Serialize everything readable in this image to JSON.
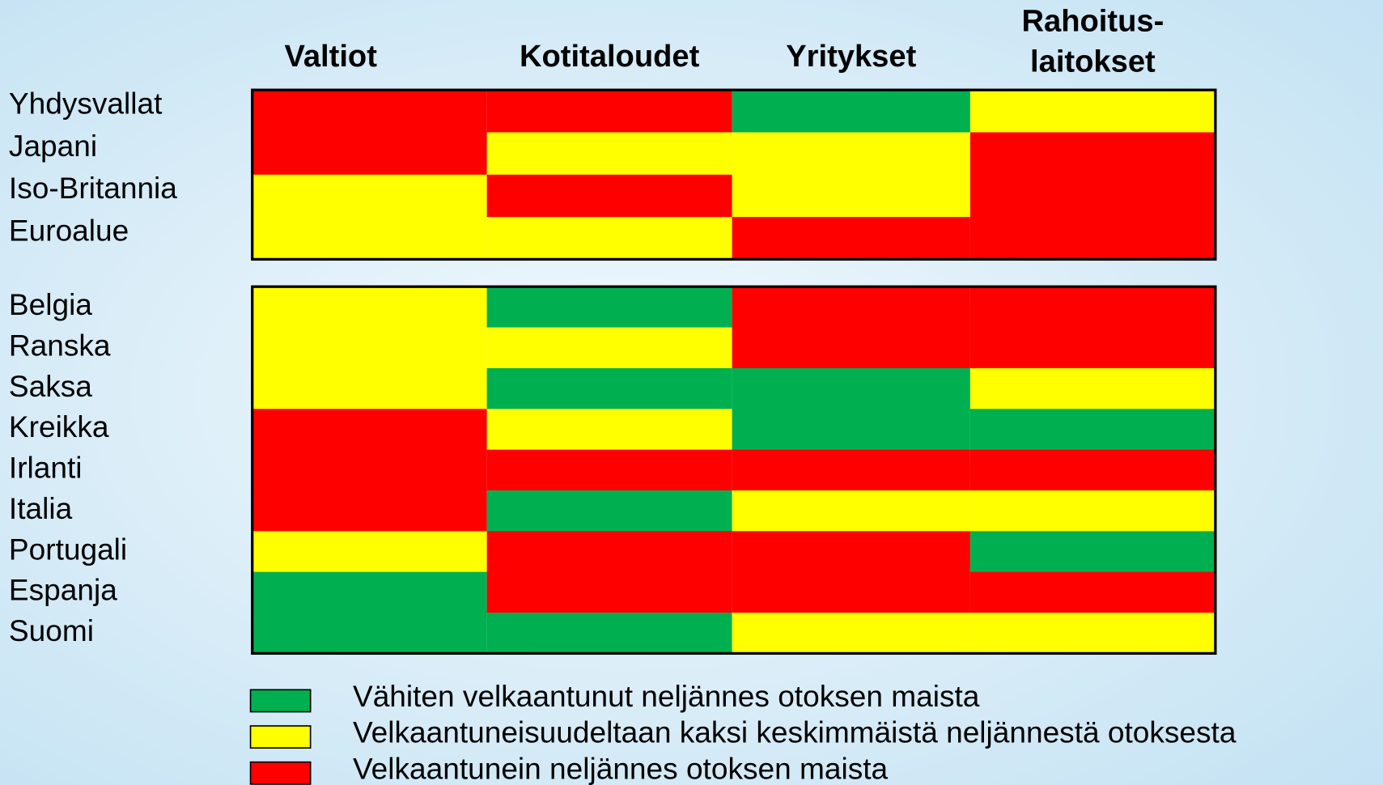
{
  "columns": [
    {
      "lines": [
        "Valtiot"
      ]
    },
    {
      "lines": [
        "Kotitaloudet"
      ]
    },
    {
      "lines": [
        "Yritykset"
      ]
    },
    {
      "lines": [
        "Rahoitus-",
        "laitokset"
      ]
    }
  ],
  "legend": [
    {
      "label": "Vähiten velkaantunut neljännes otoksen maista",
      "color": "#00b050"
    },
    {
      "label": "Velkaantuneisuudeltaan kaksi keskimmäistä neljännestä otoksesta",
      "color": "#ffff00"
    },
    {
      "label": "Velkaantunein neljännes otoksen maista",
      "color": "#ff0000"
    }
  ],
  "groups": [
    {
      "rows": [
        {
          "label": "Yhdysvallat",
          "cells": [
            2,
            2,
            0,
            1
          ]
        },
        {
          "label": "Japani",
          "cells": [
            2,
            1,
            1,
            2
          ]
        },
        {
          "label": "Iso-Britannia",
          "cells": [
            1,
            2,
            1,
            2
          ]
        },
        {
          "label": "Euroalue",
          "cells": [
            1,
            1,
            2,
            2
          ]
        }
      ]
    },
    {
      "rows": [
        {
          "label": "Belgia",
          "cells": [
            1,
            0,
            2,
            2
          ]
        },
        {
          "label": "Ranska",
          "cells": [
            1,
            1,
            2,
            2
          ]
        },
        {
          "label": "Saksa",
          "cells": [
            1,
            0,
            0,
            1
          ]
        },
        {
          "label": "Kreikka",
          "cells": [
            2,
            1,
            0,
            0
          ]
        },
        {
          "label": "Irlanti",
          "cells": [
            2,
            2,
            2,
            2
          ]
        },
        {
          "label": "Italia",
          "cells": [
            2,
            0,
            1,
            1
          ]
        },
        {
          "label": "Portugali",
          "cells": [
            1,
            2,
            2,
            0
          ]
        },
        {
          "label": "Espanja",
          "cells": [
            0,
            2,
            2,
            2
          ]
        },
        {
          "label": "Suomi",
          "cells": [
            0,
            0,
            1,
            1
          ]
        }
      ]
    }
  ]
}
